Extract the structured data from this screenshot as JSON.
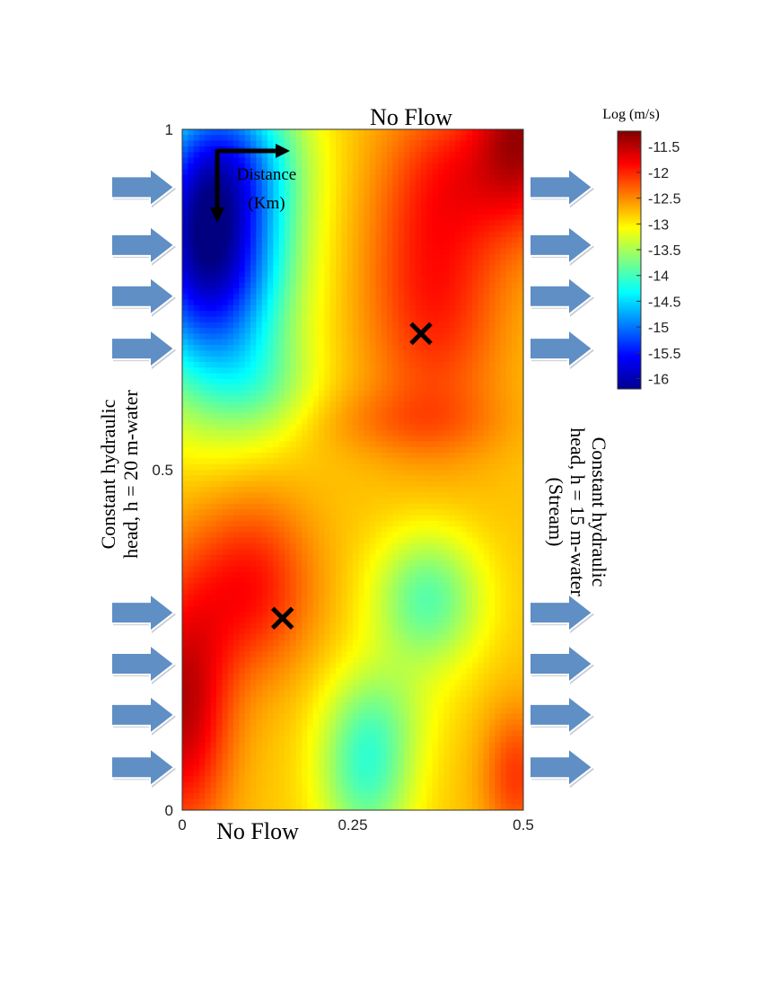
{
  "chart_data": {
    "type": "heatmap",
    "title": "",
    "boundary_labels": {
      "top": "No Flow",
      "bottom": "No Flow",
      "left": [
        "Constant hydraulic",
        "head, h = 20 m-water"
      ],
      "right": [
        "Constant hydraulic",
        "head, h = 15 m-water",
        "(Stream)"
      ]
    },
    "inset_axis_label": [
      "Distance",
      "(Km)"
    ],
    "x_ticks": [
      "0",
      "0.25",
      "0.5"
    ],
    "y_ticks": [
      "1",
      "0.5",
      "0"
    ],
    "xlim": [
      0,
      0.5
    ],
    "ylim": [
      0,
      1
    ],
    "colorbar": {
      "title": "Log (m/s)",
      "ticks": [
        "-11.5",
        "-12",
        "-12.5",
        "-13",
        "-13.5",
        "-14",
        "-14.5",
        "-15",
        "-15.5",
        "-16"
      ],
      "range": [
        -16.2,
        -11.2
      ]
    },
    "field": {
      "base": -12.8,
      "components": [
        {
          "x": 0.04,
          "y": 0.83,
          "sx": 0.11,
          "sy": 0.2,
          "a": -3.4
        },
        {
          "x": 0.08,
          "y": 0.97,
          "sx": 0.1,
          "sy": 0.1,
          "a": -0.8
        },
        {
          "x": 0.12,
          "y": 0.62,
          "sx": 0.08,
          "sy": 0.08,
          "a": -0.5
        },
        {
          "x": 0.5,
          "y": 1.0,
          "sx": 0.07,
          "sy": 0.14,
          "a": 1.3
        },
        {
          "x": 0.37,
          "y": 0.78,
          "sx": 0.1,
          "sy": 0.22,
          "a": 0.9
        },
        {
          "x": 0.41,
          "y": 0.94,
          "sx": 0.09,
          "sy": 0.1,
          "a": 0.4
        },
        {
          "x": 0.0,
          "y": 0.15,
          "sx": 0.07,
          "sy": 0.18,
          "a": 1.3
        },
        {
          "x": 0.1,
          "y": 0.33,
          "sx": 0.09,
          "sy": 0.13,
          "a": 0.9
        },
        {
          "x": 0.49,
          "y": 0.05,
          "sx": 0.05,
          "sy": 0.1,
          "a": 0.7
        },
        {
          "x": 0.33,
          "y": 0.57,
          "sx": 0.14,
          "sy": 0.05,
          "a": 0.3
        },
        {
          "x": 0.36,
          "y": 0.31,
          "sx": 0.08,
          "sy": 0.1,
          "a": -1.1
        },
        {
          "x": 0.27,
          "y": 0.06,
          "sx": 0.07,
          "sy": 0.12,
          "a": -1.2
        },
        {
          "x": 0.3,
          "y": 0.15,
          "sx": 0.08,
          "sy": 0.08,
          "a": -0.3
        }
      ]
    },
    "markers": [
      {
        "x": 0.35,
        "y": 0.7,
        "symbol": "×"
      },
      {
        "x": 0.147,
        "y": 0.282,
        "symbol": "×"
      }
    ],
    "inflow_arrow_groups": [
      {
        "side": "left",
        "y": [
          0.915,
          0.83,
          0.755,
          0.678,
          0.29,
          0.215,
          0.14,
          0.063
        ]
      },
      {
        "side": "right",
        "y": [
          0.915,
          0.83,
          0.755,
          0.678,
          0.29,
          0.215,
          0.14,
          0.063
        ]
      }
    ],
    "colors": {
      "arrow_fill": "#5f8fc4",
      "arrow_stroke": "#ffffff",
      "marker": "#000000"
    }
  }
}
